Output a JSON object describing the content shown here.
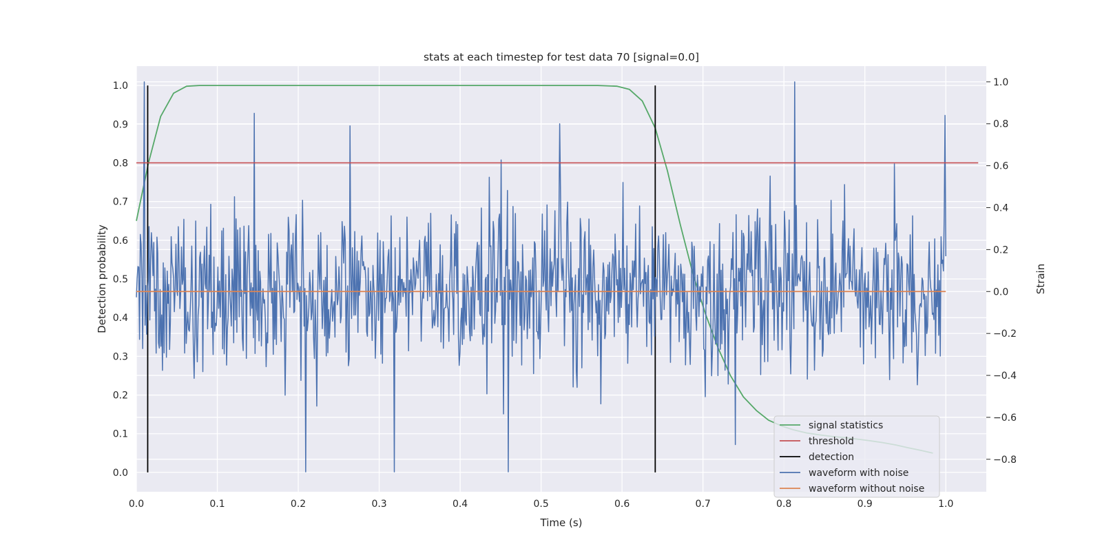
{
  "chart_data": {
    "type": "line",
    "title": "stats at each timestep for test data 70 [signal=0.0]",
    "xlabel": "Time (s)",
    "ylabel": "Detection probability",
    "y2label": "Strain",
    "xlim": [
      0.0,
      1.05
    ],
    "ylim": [
      -0.05,
      1.05
    ],
    "y2lim": [
      -0.955,
      1.075
    ],
    "x_ticks": [
      "0.0",
      "0.1",
      "0.2",
      "0.3",
      "0.4",
      "0.5",
      "0.6",
      "0.7",
      "0.8",
      "0.9",
      "1.0"
    ],
    "y_ticks": [
      "0.0",
      "0.1",
      "0.2",
      "0.3",
      "0.4",
      "0.5",
      "0.6",
      "0.7",
      "0.8",
      "0.9",
      "1.0"
    ],
    "y2_ticks": [
      "−0.8",
      "−0.6",
      "−0.4",
      "−0.2",
      "0.0",
      "0.2",
      "0.4",
      "0.6",
      "0.8",
      "1.0"
    ],
    "grid": true,
    "legend_position": "lower-right",
    "legend": [
      {
        "label": "signal statistics",
        "color": "#55a868"
      },
      {
        "label": "threshold",
        "color": "#c44e52"
      },
      {
        "label": "detection",
        "color": "#000000"
      },
      {
        "label": "waveform with noise",
        "color": "#4c72b0"
      },
      {
        "label": "waveform without noise",
        "color": "#dd8452"
      }
    ],
    "series": [
      {
        "name": "signal statistics",
        "axis": "left",
        "color": "#55a868",
        "x": [
          0.0,
          0.015,
          0.03,
          0.046,
          0.062,
          0.078,
          0.1,
          0.2,
          0.3,
          0.4,
          0.5,
          0.57,
          0.594,
          0.609,
          0.625,
          0.641,
          0.656,
          0.672,
          0.688,
          0.703,
          0.719,
          0.734,
          0.75,
          0.766,
          0.781,
          0.797,
          0.812,
          0.828,
          0.844,
          0.859,
          0.875,
          0.891,
          0.906,
          0.922,
          0.938,
          0.953,
          0.969,
          0.984
        ],
        "y": [
          0.65,
          0.8,
          0.92,
          0.98,
          0.998,
          1.0,
          1.0,
          1.0,
          1.0,
          1.0,
          1.0,
          1.0,
          0.998,
          0.99,
          0.96,
          0.89,
          0.78,
          0.64,
          0.51,
          0.41,
          0.32,
          0.25,
          0.195,
          0.16,
          0.135,
          0.12,
          0.11,
          0.102,
          0.097,
          0.093,
          0.09,
          0.086,
          0.082,
          0.077,
          0.071,
          0.064,
          0.057,
          0.05
        ]
      },
      {
        "name": "threshold",
        "axis": "left",
        "color": "#c44e52",
        "x": [
          0.0,
          1.04
        ],
        "y": [
          0.8,
          0.8
        ]
      },
      {
        "name": "waveform without noise",
        "axis": "right",
        "color": "#dd8452",
        "x": [
          0.0,
          1.0
        ],
        "y": [
          0.0,
          0.0
        ]
      }
    ],
    "detections": [
      0.014,
      0.641
    ],
    "noise_waveform": {
      "name": "waveform with noise",
      "axis": "right",
      "color": "#4c72b0",
      "x_range": [
        0.0,
        1.0
      ],
      "samples": 1024,
      "y_range": [
        -0.86,
        1.0
      ],
      "peaks": [
        [
          0.01,
          1.0
        ],
        [
          0.146,
          0.85
        ],
        [
          0.264,
          0.79
        ],
        [
          0.523,
          0.8
        ],
        [
          0.813,
          1.0
        ],
        [
          0.999,
          0.84
        ]
      ],
      "troughs": [
        [
          0.209,
          -0.86
        ],
        [
          0.319,
          -0.86
        ],
        [
          0.459,
          -0.86
        ],
        [
          0.74,
          -0.73
        ]
      ]
    }
  }
}
